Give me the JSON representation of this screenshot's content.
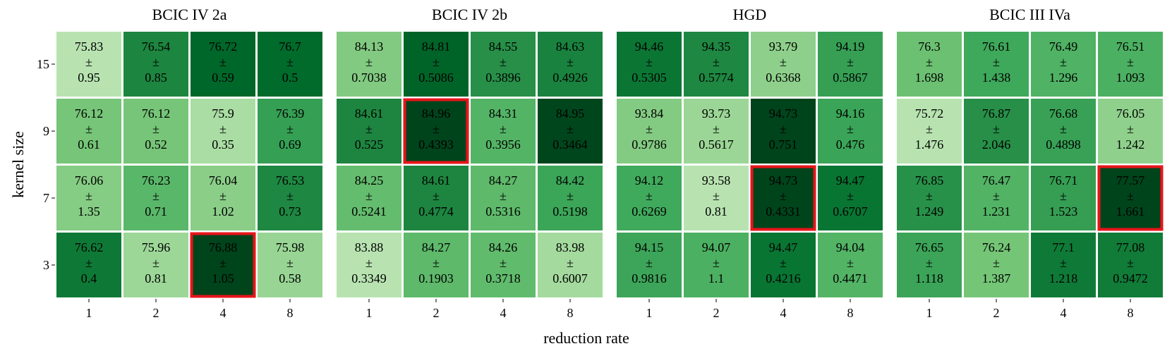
{
  "chart_data": {
    "type": "heatmap",
    "xlabel": "reduction rate",
    "ylabel": "kernel size",
    "x_categories": [
      "1",
      "2",
      "4",
      "8"
    ],
    "y_categories": [
      "15",
      "9",
      "7",
      "3"
    ],
    "pm_symbol": "±",
    "highlight_color": "#e8141a",
    "colormap": "Greens",
    "panels": [
      {
        "title": "BCIC IV 2a",
        "means": [
          [
            "75.83",
            "76.54",
            "76.72",
            "76.7"
          ],
          [
            "76.12",
            "76.12",
            "75.9",
            "76.39"
          ],
          [
            "76.06",
            "76.23",
            "76.04",
            "76.53"
          ],
          [
            "76.62",
            "75.96",
            "76.88",
            "75.98"
          ]
        ],
        "stds": [
          [
            "0.95",
            "0.85",
            "0.59",
            "0.5"
          ],
          [
            "0.61",
            "0.52",
            "0.35",
            "0.69"
          ],
          [
            "1.35",
            "0.71",
            "1.02",
            "0.73"
          ],
          [
            "0.4",
            "0.81",
            "1.05",
            "0.58"
          ]
        ],
        "highlight": {
          "row": 3,
          "col": 2
        }
      },
      {
        "title": "BCIC IV 2b",
        "means": [
          [
            "84.13",
            "84.81",
            "84.55",
            "84.63"
          ],
          [
            "84.61",
            "84.96",
            "84.31",
            "84.95"
          ],
          [
            "84.25",
            "84.61",
            "84.27",
            "84.42"
          ],
          [
            "83.88",
            "84.27",
            "84.26",
            "83.98"
          ]
        ],
        "stds": [
          [
            "0.7038",
            "0.5086",
            "0.3896",
            "0.4926"
          ],
          [
            "0.525",
            "0.4393",
            "0.3956",
            "0.3464"
          ],
          [
            "0.5241",
            "0.4774",
            "0.5316",
            "0.5198"
          ],
          [
            "0.3349",
            "0.1903",
            "0.3718",
            "0.6007"
          ]
        ],
        "highlight": {
          "row": 1,
          "col": 1
        }
      },
      {
        "title": "HGD",
        "means": [
          [
            "94.46",
            "94.35",
            "93.79",
            "94.19"
          ],
          [
            "93.84",
            "93.73",
            "94.73",
            "94.16"
          ],
          [
            "94.12",
            "93.58",
            "94.73",
            "94.47"
          ],
          [
            "94.15",
            "94.07",
            "94.47",
            "94.04"
          ]
        ],
        "stds": [
          [
            "0.5305",
            "0.5774",
            "0.6368",
            "0.5867"
          ],
          [
            "0.9786",
            "0.5617",
            "0.751",
            "0.476"
          ],
          [
            "0.6269",
            "0.81",
            "0.4331",
            "0.6707"
          ],
          [
            "0.9816",
            "1.1",
            "0.4216",
            "0.4471"
          ]
        ],
        "highlight": {
          "row": 2,
          "col": 2
        }
      },
      {
        "title": "BCIC III IVa",
        "means": [
          [
            "76.3",
            "76.61",
            "76.49",
            "76.51"
          ],
          [
            "75.72",
            "76.87",
            "76.68",
            "76.05"
          ],
          [
            "76.85",
            "76.47",
            "76.71",
            "77.57"
          ],
          [
            "76.65",
            "76.24",
            "77.1",
            "77.08"
          ]
        ],
        "stds": [
          [
            "1.698",
            "1.438",
            "1.296",
            "1.093"
          ],
          [
            "1.476",
            "2.046",
            "0.4898",
            "1.242"
          ],
          [
            "1.249",
            "1.231",
            "1.523",
            "1.661"
          ],
          [
            "1.118",
            "1.387",
            "1.218",
            "0.9472"
          ]
        ],
        "highlight": {
          "row": 2,
          "col": 3
        }
      }
    ]
  }
}
